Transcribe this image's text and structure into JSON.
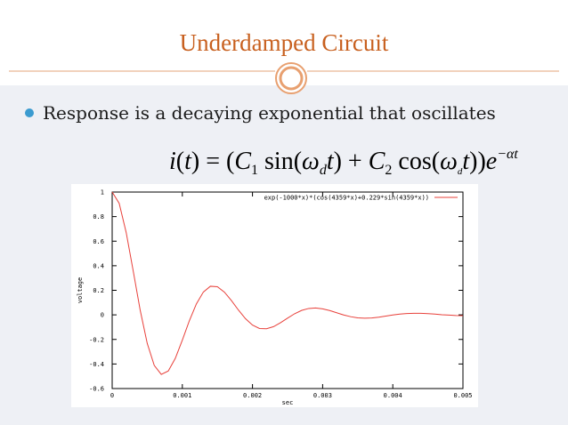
{
  "slide": {
    "title": "Underdamped Circuit",
    "bullet": "Response is a decaying exponential that oscillates",
    "equation": [
      "i",
      "(",
      "t",
      ") = (",
      "C",
      "1",
      " sin(",
      "ω",
      "d",
      "t",
      ") + ",
      "C",
      "2",
      " cos(",
      "ω",
      "d",
      "t",
      "))",
      "e",
      "−αt"
    ]
  },
  "chart_data": {
    "type": "line",
    "xlabel": "sec",
    "ylabel": "voltage",
    "x": [
      0,
      0.0001,
      0.0002,
      0.0003,
      0.0004,
      0.0005,
      0.0006,
      0.0007,
      0.0008,
      0.0009,
      0.001,
      0.0011,
      0.0012,
      0.0013,
      0.0014,
      0.0015,
      0.0016,
      0.0017,
      0.0018,
      0.0019,
      0.002,
      0.0021,
      0.0022,
      0.0023,
      0.0024,
      0.0025,
      0.0026,
      0.0027,
      0.0028,
      0.0029,
      0.003,
      0.0031,
      0.0032,
      0.0033,
      0.0034,
      0.0035,
      0.0036,
      0.0037,
      0.0038,
      0.0039,
      0.004,
      0.0041,
      0.0042,
      0.0043,
      0.0044,
      0.0045,
      0.0046,
      0.0047,
      0.0048,
      0.0049,
      0.005
    ],
    "series": [
      {
        "name": "exp(-1000*x)*(cos(4359*x)+0.229*sin(4359*x))",
        "color": "#e8403a",
        "values": [
          1,
          0.908,
          0.67,
          0.357,
          0.036,
          -0.233,
          -0.412,
          -0.485,
          -0.457,
          -0.354,
          -0.206,
          -0.048,
          0.089,
          0.186,
          0.233,
          0.229,
          0.185,
          0.116,
          0.039,
          -0.031,
          -0.083,
          -0.111,
          -0.113,
          -0.096,
          -0.064,
          -0.027,
          0.009,
          0.036,
          0.052,
          0.056,
          0.049,
          0.035,
          0.017,
          -0.001,
          -0.015,
          -0.024,
          -0.027,
          -0.025,
          -0.019,
          -0.01,
          -0.001,
          0.006,
          0.011,
          0.013,
          0.013,
          0.01,
          0.006,
          0.001,
          -0.002,
          -0.005,
          -0.006
        ]
      }
    ],
    "xlim": [
      0,
      0.005
    ],
    "xticks": [
      0,
      0.001,
      0.002,
      0.003,
      0.004,
      0.005
    ],
    "ylim": [
      -0.6,
      1
    ],
    "yticks": [
      -0.6,
      -0.4,
      -0.2,
      0,
      0.2,
      0.4,
      0.6,
      0.8,
      1
    ],
    "legend": "top-right"
  }
}
